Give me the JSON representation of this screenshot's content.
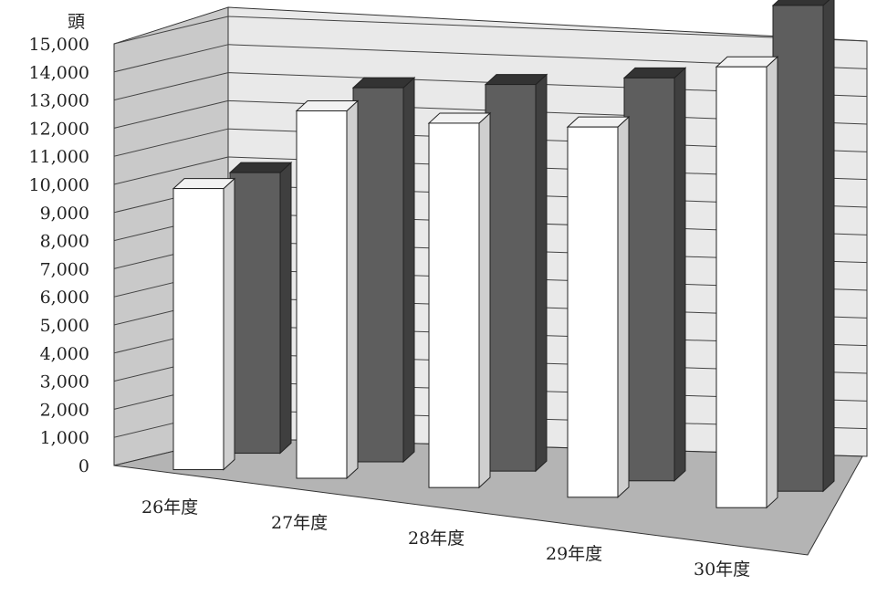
{
  "chart_data": {
    "type": "bar",
    "style": "3d-clustered-column",
    "yunit": "頭",
    "ylim": [
      0,
      15000
    ],
    "yticks": [
      "0",
      "1,000",
      "2,000",
      "3,000",
      "4,000",
      "5,000",
      "6,000",
      "7,000",
      "8,000",
      "9,000",
      "10,000",
      "11,000",
      "12,000",
      "13,000",
      "14,000",
      "15,000"
    ],
    "categories": [
      "26年度",
      "27年度",
      "28年度",
      "29年度",
      "30年度"
    ],
    "series": [
      {
        "color": "#ffffff",
        "values": [
          9800,
          12300,
          11700,
          11400,
          13000
        ]
      },
      {
        "color": "#5e5e5e",
        "values": [
          9600,
          12300,
          12200,
          12200,
          14100
        ]
      }
    ],
    "grid": true,
    "legend": "none"
  }
}
